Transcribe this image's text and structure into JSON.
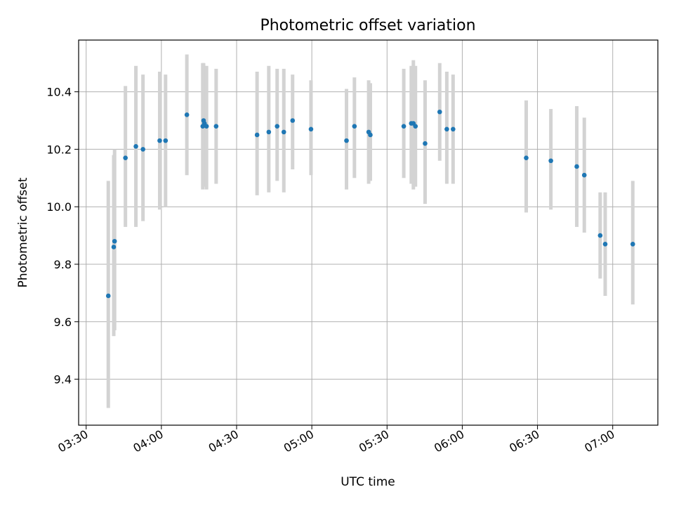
{
  "chart_data": {
    "type": "scatter",
    "title": "Photometric offset variation",
    "xlabel": "UTC time",
    "ylabel": "Photometric offset",
    "xlim": [
      "03:27",
      "07:18"
    ],
    "ylim": [
      9.24,
      10.58
    ],
    "grid": true,
    "xticks": [
      "03:30",
      "04:00",
      "04:30",
      "05:00",
      "05:30",
      "06:00",
      "06:30",
      "07:00"
    ],
    "yticks": [
      9.4,
      9.6,
      9.8,
      10.0,
      10.2,
      10.4
    ],
    "colors": {
      "point": "#1f77b4",
      "errorbar": "#d3d3d3"
    },
    "points": [
      {
        "t": "03:38:50",
        "y": 9.69,
        "lo": 9.3,
        "hi": 10.09
      },
      {
        "t": "03:41:00",
        "y": 9.86,
        "lo": 9.55,
        "hi": 10.18
      },
      {
        "t": "03:41:20",
        "y": 9.88,
        "lo": 9.57,
        "hi": 10.2
      },
      {
        "t": "03:45:40",
        "y": 10.17,
        "lo": 9.93,
        "hi": 10.42
      },
      {
        "t": "03:49:50",
        "y": 10.21,
        "lo": 9.93,
        "hi": 10.49
      },
      {
        "t": "03:52:40",
        "y": 10.2,
        "lo": 9.95,
        "hi": 10.46
      },
      {
        "t": "03:59:20",
        "y": 10.23,
        "lo": 9.99,
        "hi": 10.47
      },
      {
        "t": "04:01:40",
        "y": 10.23,
        "lo": 10.0,
        "hi": 10.46
      },
      {
        "t": "04:10:10",
        "y": 10.32,
        "lo": 10.11,
        "hi": 10.53
      },
      {
        "t": "04:16:30",
        "y": 10.28,
        "lo": 10.06,
        "hi": 10.5
      },
      {
        "t": "04:16:50",
        "y": 10.3,
        "lo": 10.07,
        "hi": 10.5
      },
      {
        "t": "04:17:10",
        "y": 10.29,
        "lo": 10.07,
        "hi": 10.49
      },
      {
        "t": "04:18:00",
        "y": 10.28,
        "lo": 10.06,
        "hi": 10.49
      },
      {
        "t": "04:21:50",
        "y": 10.28,
        "lo": 10.08,
        "hi": 10.48
      },
      {
        "t": "04:38:10",
        "y": 10.25,
        "lo": 10.04,
        "hi": 10.47
      },
      {
        "t": "04:42:50",
        "y": 10.26,
        "lo": 10.05,
        "hi": 10.49
      },
      {
        "t": "04:46:10",
        "y": 10.28,
        "lo": 10.09,
        "hi": 10.48
      },
      {
        "t": "04:48:50",
        "y": 10.26,
        "lo": 10.05,
        "hi": 10.48
      },
      {
        "t": "04:52:20",
        "y": 10.3,
        "lo": 10.13,
        "hi": 10.46
      },
      {
        "t": "04:59:40",
        "y": 10.27,
        "lo": 10.11,
        "hi": 10.44
      },
      {
        "t": "05:13:50",
        "y": 10.23,
        "lo": 10.06,
        "hi": 10.41
      },
      {
        "t": "05:17:00",
        "y": 10.28,
        "lo": 10.1,
        "hi": 10.45
      },
      {
        "t": "05:22:40",
        "y": 10.26,
        "lo": 10.08,
        "hi": 10.44
      },
      {
        "t": "05:23:20",
        "y": 10.25,
        "lo": 10.09,
        "hi": 10.43
      },
      {
        "t": "05:36:40",
        "y": 10.28,
        "lo": 10.1,
        "hi": 10.48
      },
      {
        "t": "05:39:40",
        "y": 10.29,
        "lo": 10.08,
        "hi": 10.49
      },
      {
        "t": "05:40:30",
        "y": 10.29,
        "lo": 10.06,
        "hi": 10.51
      },
      {
        "t": "05:41:20",
        "y": 10.28,
        "lo": 10.07,
        "hi": 10.49
      },
      {
        "t": "05:45:10",
        "y": 10.22,
        "lo": 10.01,
        "hi": 10.44
      },
      {
        "t": "05:51:00",
        "y": 10.33,
        "lo": 10.16,
        "hi": 10.5
      },
      {
        "t": "05:53:50",
        "y": 10.27,
        "lo": 10.08,
        "hi": 10.47
      },
      {
        "t": "05:56:20",
        "y": 10.27,
        "lo": 10.08,
        "hi": 10.46
      },
      {
        "t": "06:25:30",
        "y": 10.17,
        "lo": 9.98,
        "hi": 10.37
      },
      {
        "t": "06:35:20",
        "y": 10.16,
        "lo": 9.99,
        "hi": 10.34
      },
      {
        "t": "06:45:40",
        "y": 10.14,
        "lo": 9.93,
        "hi": 10.35
      },
      {
        "t": "06:48:40",
        "y": 10.11,
        "lo": 9.91,
        "hi": 10.31
      },
      {
        "t": "06:55:00",
        "y": 9.9,
        "lo": 9.75,
        "hi": 10.05
      },
      {
        "t": "06:57:00",
        "y": 9.87,
        "lo": 9.69,
        "hi": 10.05
      },
      {
        "t": "07:08:00",
        "y": 9.87,
        "lo": 9.66,
        "hi": 10.09
      }
    ]
  }
}
